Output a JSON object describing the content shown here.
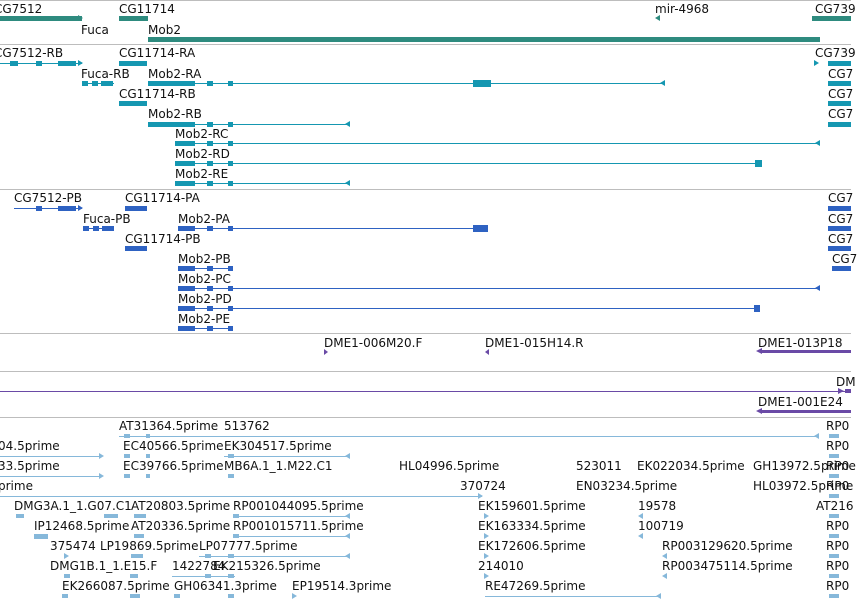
{
  "colors": {
    "gene": "#2e8b7f",
    "transcript": "#1597b1",
    "protein": "#2e62c2",
    "clone": "#6a4aa6",
    "est": "#86b8da",
    "separator": "#bdbdbd"
  },
  "genes": [
    {
      "label": "CG7512"
    },
    {
      "label": "CG11714"
    },
    {
      "label": "mir-4968"
    },
    {
      "label": "CG739"
    },
    {
      "label": "Fuca"
    },
    {
      "label": "Mob2"
    }
  ],
  "transcripts": [
    {
      "label": "CG7512-RB"
    },
    {
      "label": "CG11714-RA"
    },
    {
      "label": "CG739"
    },
    {
      "label": "Fuca-RB"
    },
    {
      "label": "Mob2-RA"
    },
    {
      "label": "CG7"
    },
    {
      "label": "CG11714-RB"
    },
    {
      "label": "CG7"
    },
    {
      "label": "Mob2-RB"
    },
    {
      "label": "CG7"
    },
    {
      "label": "Mob2-RC"
    },
    {
      "label": "Mob2-RD"
    },
    {
      "label": "Mob2-RE"
    }
  ],
  "proteins": [
    {
      "label": "CG7512-PB"
    },
    {
      "label": "CG11714-PA"
    },
    {
      "label": "CG7"
    },
    {
      "label": "Fuca-PB"
    },
    {
      "label": "Mob2-PA"
    },
    {
      "label": "CG7"
    },
    {
      "label": "CG11714-PB"
    },
    {
      "label": "CG7"
    },
    {
      "label": "Mob2-PB"
    },
    {
      "label": "CG7"
    },
    {
      "label": "Mob2-PC"
    },
    {
      "label": "Mob2-PD"
    },
    {
      "label": "Mob2-PE"
    }
  ],
  "clones": [
    {
      "label": "DME1-006M20.F"
    },
    {
      "label": "DME1-015H14.R"
    },
    {
      "label": "DME1-013P18"
    },
    {
      "label": "DM"
    },
    {
      "label": "DME1-001E24"
    }
  ],
  "ests": [
    {
      "label": "AT31364.5prime"
    },
    {
      "label": "513762"
    },
    {
      "label": "RP0"
    },
    {
      "label": "04.5prime"
    },
    {
      "label": "EC40566.5prime"
    },
    {
      "label": "EK304517.5prime"
    },
    {
      "label": "RP0"
    },
    {
      "label": "33.5prime"
    },
    {
      "label": "EC39766.5prime"
    },
    {
      "label": "MB6A.1_1.M22.C1"
    },
    {
      "label": "HL04996.5prime"
    },
    {
      "label": "523011"
    },
    {
      "label": "EK022034.5prime"
    },
    {
      "label": "GH13972.5prime"
    },
    {
      "label": "RP0"
    },
    {
      "label": "prime"
    },
    {
      "label": "370724"
    },
    {
      "label": "EN03234.5prime"
    },
    {
      "label": "HL03972.5prime"
    },
    {
      "label": "RP0"
    },
    {
      "label": "DMG3A.1_1.G07.C1"
    },
    {
      "label": "AT20803.5prime"
    },
    {
      "label": "RP001044095.5prime"
    },
    {
      "label": "EK159601.5prime"
    },
    {
      "label": "19578"
    },
    {
      "label": "AT216"
    },
    {
      "label": "IP12468.5prime"
    },
    {
      "label": "AT20336.5prime"
    },
    {
      "label": "RP001015711.5prime"
    },
    {
      "label": "EK163334.5prime"
    },
    {
      "label": "100719"
    },
    {
      "label": "RP0"
    },
    {
      "label": "375474"
    },
    {
      "label": "LP19869.5prime"
    },
    {
      "label": "LP07777.5prime"
    },
    {
      "label": "EK172606.5prime"
    },
    {
      "label": "RP003129620.5prime"
    },
    {
      "label": "RP0"
    },
    {
      "label": "DMG1B.1_1.E15.F"
    },
    {
      "label": "1422784"
    },
    {
      "label": "EK215326.5prime"
    },
    {
      "label": "214010"
    },
    {
      "label": "RP003475114.5prime"
    },
    {
      "label": "RP0"
    },
    {
      "label": "EK266087.5prime"
    },
    {
      "label": "GH06341.3prime"
    },
    {
      "label": "EP19514.3prime"
    },
    {
      "label": "RE47269.5prime"
    },
    {
      "label": "RP0"
    }
  ]
}
